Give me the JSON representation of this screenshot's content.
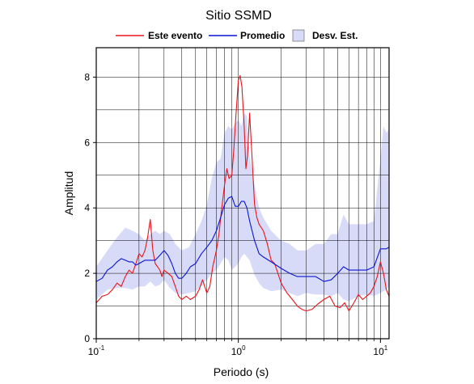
{
  "chart_data": {
    "type": "line",
    "title": "Sitio SSMD",
    "xlabel": "Periodo (s)",
    "ylabel": "Amplitud",
    "x_scale": "log",
    "xlim": [
      0.1,
      11.5
    ],
    "ylim": [
      0,
      8.9
    ],
    "grid": true,
    "legend_position": "top",
    "x_ticks": [
      {
        "base": "10",
        "exp": "-1"
      },
      {
        "base": "10",
        "exp": "0"
      },
      {
        "base": "10",
        "exp": "1"
      }
    ],
    "y_ticks": [
      "0",
      "2",
      "4",
      "6",
      "8"
    ],
    "series": [
      {
        "name": "Este evento",
        "color": "#e8141c",
        "x": [
          0.1,
          0.105,
          0.11,
          0.12,
          0.13,
          0.14,
          0.15,
          0.16,
          0.17,
          0.18,
          0.19,
          0.2,
          0.21,
          0.22,
          0.23,
          0.24,
          0.25,
          0.26,
          0.27,
          0.28,
          0.29,
          0.3,
          0.32,
          0.34,
          0.36,
          0.38,
          0.4,
          0.43,
          0.46,
          0.5,
          0.53,
          0.56,
          0.6,
          0.63,
          0.66,
          0.7,
          0.73,
          0.76,
          0.8,
          0.83,
          0.86,
          0.9,
          0.93,
          0.96,
          1.0,
          1.03,
          1.06,
          1.1,
          1.13,
          1.16,
          1.2,
          1.25,
          1.3,
          1.35,
          1.4,
          1.5,
          1.6,
          1.7,
          1.8,
          2.0,
          2.2,
          2.4,
          2.6,
          2.8,
          3.0,
          3.3,
          3.6,
          4.0,
          4.4,
          4.8,
          5.2,
          5.6,
          6.0,
          6.5,
          7.0,
          7.5,
          8.0,
          8.5,
          9.0,
          9.5,
          10.0,
          10.5,
          11.0,
          11.5
        ],
        "values": [
          1.1,
          1.2,
          1.3,
          1.35,
          1.5,
          1.7,
          1.6,
          1.9,
          2.1,
          2.0,
          2.3,
          2.6,
          2.5,
          2.7,
          3.1,
          3.65,
          2.7,
          2.3,
          2.2,
          2.1,
          1.9,
          2.1,
          2.0,
          1.9,
          1.6,
          1.3,
          1.2,
          1.3,
          1.2,
          1.3,
          1.5,
          1.8,
          1.4,
          1.6,
          2.2,
          2.7,
          3.2,
          3.9,
          4.7,
          5.2,
          4.9,
          5.0,
          5.8,
          6.8,
          7.9,
          8.05,
          7.7,
          6.5,
          5.2,
          5.6,
          6.9,
          5.5,
          4.1,
          3.7,
          3.5,
          3.3,
          2.9,
          2.4,
          2.3,
          1.7,
          1.4,
          1.2,
          1.0,
          0.9,
          0.85,
          0.9,
          1.05,
          1.2,
          1.3,
          1.0,
          0.95,
          1.1,
          0.85,
          1.1,
          1.35,
          1.2,
          1.3,
          1.4,
          1.6,
          1.9,
          2.35,
          2.0,
          1.5,
          1.3
        ]
      },
      {
        "name": "Promedio",
        "color": "#0a14d0",
        "x": [
          0.1,
          0.11,
          0.12,
          0.13,
          0.14,
          0.15,
          0.16,
          0.17,
          0.18,
          0.19,
          0.2,
          0.22,
          0.24,
          0.26,
          0.28,
          0.3,
          0.32,
          0.34,
          0.36,
          0.38,
          0.4,
          0.43,
          0.46,
          0.5,
          0.55,
          0.6,
          0.65,
          0.7,
          0.75,
          0.8,
          0.85,
          0.9,
          0.95,
          1.0,
          1.05,
          1.1,
          1.15,
          1.2,
          1.3,
          1.4,
          1.5,
          1.7,
          2.0,
          2.3,
          2.6,
          3.0,
          3.5,
          4.0,
          4.5,
          5.0,
          5.5,
          6.0,
          7.0,
          8.0,
          9.0,
          10.0,
          11.0,
          11.5
        ],
        "values": [
          1.75,
          1.85,
          2.1,
          2.2,
          2.35,
          2.45,
          2.4,
          2.35,
          2.35,
          2.25,
          2.3,
          2.4,
          2.4,
          2.4,
          2.55,
          2.7,
          2.55,
          2.3,
          2.0,
          1.85,
          1.85,
          2.0,
          2.2,
          2.3,
          2.6,
          2.8,
          3.0,
          3.3,
          3.7,
          4.1,
          4.3,
          4.35,
          4.05,
          4.05,
          4.2,
          4.2,
          4.0,
          3.6,
          3.0,
          2.6,
          2.5,
          2.35,
          2.15,
          2.0,
          1.9,
          1.9,
          1.9,
          1.75,
          1.8,
          2.0,
          2.2,
          2.1,
          2.1,
          2.1,
          2.2,
          2.75,
          2.75,
          2.8
        ]
      }
    ],
    "band": {
      "name": "Desv. Est.",
      "color": "#d8dbf7",
      "x": [
        0.1,
        0.12,
        0.14,
        0.16,
        0.18,
        0.2,
        0.22,
        0.24,
        0.26,
        0.28,
        0.3,
        0.33,
        0.36,
        0.4,
        0.45,
        0.5,
        0.55,
        0.6,
        0.65,
        0.7,
        0.75,
        0.8,
        0.85,
        0.9,
        0.95,
        1.0,
        1.05,
        1.1,
        1.15,
        1.2,
        1.3,
        1.4,
        1.5,
        1.7,
        2.0,
        2.3,
        2.6,
        3.0,
        3.5,
        4.0,
        4.5,
        5.0,
        5.5,
        6.0,
        7.0,
        8.0,
        9.0,
        10.0,
        10.5,
        11.0,
        11.5
      ],
      "upper": [
        2.2,
        2.7,
        3.1,
        3.4,
        3.3,
        3.2,
        3.0,
        3.2,
        3.3,
        3.2,
        3.3,
        3.2,
        2.9,
        2.7,
        2.8,
        3.2,
        3.6,
        4.1,
        4.9,
        5.4,
        5.5,
        6.3,
        6.5,
        6.4,
        6.6,
        6.7,
        6.5,
        6.9,
        6.8,
        5.6,
        4.7,
        4.0,
        3.7,
        3.3,
        3.0,
        2.9,
        2.7,
        2.7,
        2.9,
        2.9,
        3.2,
        3.2,
        3.8,
        3.5,
        3.5,
        3.5,
        3.6,
        5.5,
        6.5,
        6.3,
        6.4
      ],
      "lower": [
        1.2,
        1.5,
        1.55,
        1.55,
        1.5,
        1.6,
        1.6,
        1.75,
        1.6,
        1.65,
        1.8,
        1.55,
        1.4,
        1.35,
        1.4,
        1.45,
        1.6,
        1.8,
        2.0,
        2.1,
        2.3,
        2.5,
        2.4,
        2.1,
        2.2,
        2.3,
        2.5,
        2.6,
        2.5,
        2.4,
        1.95,
        1.7,
        1.55,
        1.45,
        1.5,
        1.4,
        1.3,
        1.4,
        1.35,
        1.35,
        1.3,
        1.4,
        1.2,
        1.15,
        1.3,
        1.35,
        1.3,
        1.4,
        1.45,
        1.5,
        1.6
      ]
    }
  }
}
